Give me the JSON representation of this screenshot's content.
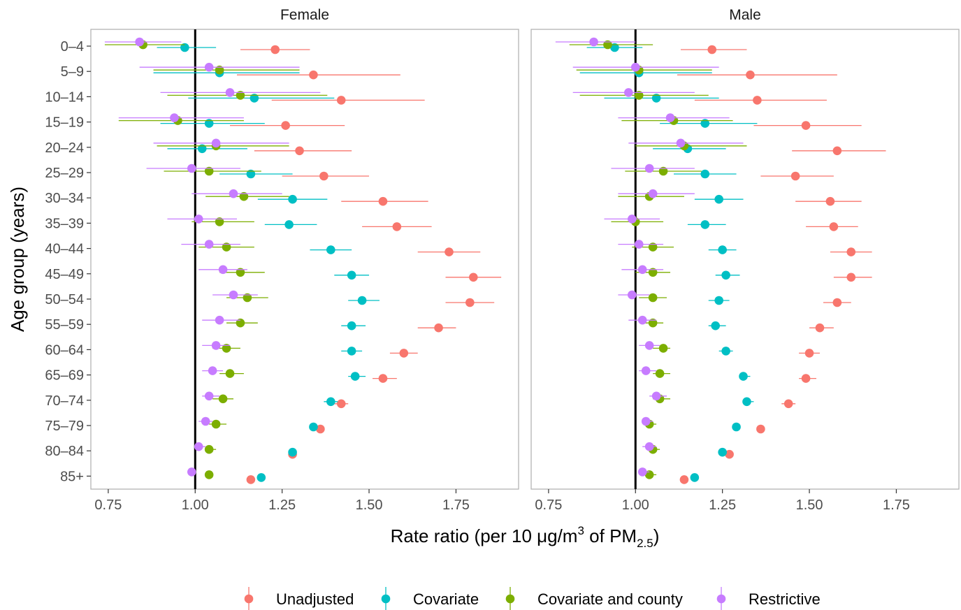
{
  "chart_data": {
    "type": "scatter",
    "subtype": "forest-plot",
    "xlabel": "Rate ratio (per 10 μg/m",
    "xlabel_sup": "3",
    "xlabel_mid": " of PM",
    "xlabel_sub": "2.5",
    "xlabel_end": ")",
    "ylabel": "Age group (years)",
    "xlim": [
      0.7,
      1.93
    ],
    "x_ticks": [
      "0.75",
      "1.00",
      "1.25",
      "1.50",
      "1.75"
    ],
    "x_tick_values": [
      0.75,
      1.0,
      1.25,
      1.5,
      1.75
    ],
    "reference_line": 1.0,
    "grid": false,
    "legend_position": "bottom",
    "categories": [
      "0–4",
      "5–9",
      "10–14",
      "15–19",
      "20–24",
      "25–29",
      "30–34",
      "35–39",
      "40–44",
      "45–49",
      "50–54",
      "55–59",
      "60–64",
      "65–69",
      "70–74",
      "75–79",
      "80–84",
      "85+"
    ],
    "series_meta": [
      {
        "key": "unadjusted",
        "name": "Unadjusted",
        "color": "#F8766D"
      },
      {
        "key": "covariate",
        "name": "Covariate",
        "color": "#00BFC4"
      },
      {
        "key": "county",
        "name": "Covariate and county",
        "color": "#7CAE00"
      },
      {
        "key": "restrictive",
        "name": "Restrictive",
        "color": "#C77CFF"
      }
    ],
    "panels": [
      {
        "title": "Female",
        "series": {
          "unadjusted": [
            [
              1.23,
              1.13,
              1.33
            ],
            [
              1.34,
              1.12,
              1.59
            ],
            [
              1.42,
              1.22,
              1.66
            ],
            [
              1.26,
              1.1,
              1.43
            ],
            [
              1.3,
              1.17,
              1.45
            ],
            [
              1.37,
              1.25,
              1.5
            ],
            [
              1.54,
              1.42,
              1.67
            ],
            [
              1.58,
              1.48,
              1.68
            ],
            [
              1.73,
              1.64,
              1.82
            ],
            [
              1.8,
              1.72,
              1.88
            ],
            [
              1.79,
              1.72,
              1.86
            ],
            [
              1.7,
              1.64,
              1.75
            ],
            [
              1.6,
              1.56,
              1.64
            ],
            [
              1.54,
              1.51,
              1.58
            ],
            [
              1.42,
              1.4,
              1.44
            ],
            [
              1.36,
              1.35,
              1.37
            ],
            [
              1.28,
              1.27,
              1.29
            ],
            [
              1.16,
              1.15,
              1.17
            ]
          ],
          "covariate": [
            [
              0.97,
              0.89,
              1.06
            ],
            [
              1.07,
              0.88,
              1.3
            ],
            [
              1.17,
              0.98,
              1.4
            ],
            [
              1.04,
              0.9,
              1.2
            ],
            [
              1.02,
              0.92,
              1.15
            ],
            [
              1.16,
              1.07,
              1.28
            ],
            [
              1.28,
              1.18,
              1.38
            ],
            [
              1.27,
              1.2,
              1.35
            ],
            [
              1.39,
              1.33,
              1.45
            ],
            [
              1.45,
              1.4,
              1.5
            ],
            [
              1.48,
              1.44,
              1.53
            ],
            [
              1.45,
              1.42,
              1.49
            ],
            [
              1.45,
              1.42,
              1.48
            ],
            [
              1.46,
              1.44,
              1.49
            ],
            [
              1.39,
              1.37,
              1.41
            ],
            [
              1.34,
              1.33,
              1.35
            ],
            [
              1.28,
              1.27,
              1.29
            ],
            [
              1.19,
              1.18,
              1.2
            ]
          ],
          "county": [
            [
              0.85,
              0.74,
              0.97
            ],
            [
              1.07,
              0.88,
              1.3
            ],
            [
              1.13,
              0.92,
              1.38
            ],
            [
              0.95,
              0.78,
              1.14
            ],
            [
              1.06,
              0.89,
              1.27
            ],
            [
              1.04,
              0.91,
              1.19
            ],
            [
              1.14,
              1.03,
              1.27
            ],
            [
              1.07,
              0.99,
              1.17
            ],
            [
              1.09,
              1.01,
              1.17
            ],
            [
              1.13,
              1.07,
              1.2
            ],
            [
              1.15,
              1.09,
              1.21
            ],
            [
              1.13,
              1.09,
              1.18
            ],
            [
              1.09,
              1.05,
              1.13
            ],
            [
              1.1,
              1.07,
              1.14
            ],
            [
              1.08,
              1.05,
              1.11
            ],
            [
              1.06,
              1.04,
              1.09
            ],
            [
              1.04,
              1.03,
              1.06
            ],
            [
              1.04,
              1.03,
              1.05
            ]
          ],
          "restrictive": [
            [
              0.84,
              0.74,
              0.96
            ],
            [
              1.04,
              0.84,
              1.3
            ],
            [
              1.1,
              0.9,
              1.36
            ],
            [
              0.94,
              0.78,
              1.14
            ],
            [
              1.06,
              0.88,
              1.27
            ],
            [
              0.99,
              0.86,
              1.13
            ],
            [
              1.11,
              0.99,
              1.25
            ],
            [
              1.01,
              0.92,
              1.12
            ],
            [
              1.04,
              0.96,
              1.13
            ],
            [
              1.08,
              1.01,
              1.15
            ],
            [
              1.11,
              1.05,
              1.18
            ],
            [
              1.07,
              1.02,
              1.13
            ],
            [
              1.06,
              1.02,
              1.1
            ],
            [
              1.05,
              1.02,
              1.08
            ],
            [
              1.04,
              1.02,
              1.07
            ],
            [
              1.03,
              1.01,
              1.05
            ],
            [
              1.01,
              1.0,
              1.03
            ],
            [
              0.99,
              0.98,
              1.0
            ]
          ]
        }
      },
      {
        "title": "Male",
        "series": {
          "unadjusted": [
            [
              1.22,
              1.13,
              1.32
            ],
            [
              1.33,
              1.12,
              1.58
            ],
            [
              1.35,
              1.17,
              1.55
            ],
            [
              1.49,
              1.34,
              1.65
            ],
            [
              1.58,
              1.45,
              1.72
            ],
            [
              1.46,
              1.36,
              1.57
            ],
            [
              1.56,
              1.46,
              1.65
            ],
            [
              1.57,
              1.49,
              1.64
            ],
            [
              1.62,
              1.56,
              1.68
            ],
            [
              1.62,
              1.57,
              1.68
            ],
            [
              1.58,
              1.54,
              1.62
            ],
            [
              1.53,
              1.5,
              1.57
            ],
            [
              1.5,
              1.47,
              1.53
            ],
            [
              1.49,
              1.47,
              1.52
            ],
            [
              1.44,
              1.42,
              1.46
            ],
            [
              1.36,
              1.35,
              1.37
            ],
            [
              1.27,
              1.26,
              1.28
            ],
            [
              1.14,
              1.13,
              1.15
            ]
          ],
          "covariate": [
            [
              0.94,
              0.86,
              1.02
            ],
            [
              1.01,
              0.84,
              1.22
            ],
            [
              1.06,
              0.91,
              1.24
            ],
            [
              1.2,
              1.07,
              1.35
            ],
            [
              1.15,
              1.05,
              1.26
            ],
            [
              1.2,
              1.11,
              1.29
            ],
            [
              1.24,
              1.17,
              1.31
            ],
            [
              1.2,
              1.15,
              1.26
            ],
            [
              1.25,
              1.21,
              1.29
            ],
            [
              1.26,
              1.23,
              1.3
            ],
            [
              1.24,
              1.21,
              1.27
            ],
            [
              1.23,
              1.21,
              1.26
            ],
            [
              1.26,
              1.24,
              1.28
            ],
            [
              1.31,
              1.3,
              1.33
            ],
            [
              1.32,
              1.31,
              1.34
            ],
            [
              1.29,
              1.28,
              1.3
            ],
            [
              1.25,
              1.24,
              1.26
            ],
            [
              1.17,
              1.16,
              1.18
            ]
          ],
          "county": [
            [
              0.92,
              0.81,
              1.05
            ],
            [
              1.01,
              0.83,
              1.22
            ],
            [
              1.01,
              0.84,
              1.21
            ],
            [
              1.11,
              0.96,
              1.28
            ],
            [
              1.14,
              1.0,
              1.32
            ],
            [
              1.08,
              0.97,
              1.19
            ],
            [
              1.04,
              0.95,
              1.14
            ],
            [
              1.0,
              0.93,
              1.08
            ],
            [
              1.05,
              0.99,
              1.11
            ],
            [
              1.05,
              1.0,
              1.1
            ],
            [
              1.05,
              1.01,
              1.09
            ],
            [
              1.05,
              1.02,
              1.08
            ],
            [
              1.08,
              1.05,
              1.1
            ],
            [
              1.07,
              1.05,
              1.1
            ],
            [
              1.07,
              1.05,
              1.1
            ],
            [
              1.04,
              1.03,
              1.06
            ],
            [
              1.05,
              1.04,
              1.07
            ],
            [
              1.04,
              1.03,
              1.06
            ]
          ],
          "restrictive": [
            [
              0.88,
              0.77,
              1.0
            ],
            [
              1.0,
              0.82,
              1.24
            ],
            [
              0.98,
              0.82,
              1.17
            ],
            [
              1.1,
              0.95,
              1.27
            ],
            [
              1.13,
              0.98,
              1.31
            ],
            [
              1.04,
              0.93,
              1.17
            ],
            [
              1.05,
              0.95,
              1.17
            ],
            [
              0.99,
              0.91,
              1.07
            ],
            [
              1.01,
              0.95,
              1.08
            ],
            [
              1.02,
              0.96,
              1.08
            ],
            [
              0.99,
              0.95,
              1.04
            ],
            [
              1.02,
              0.98,
              1.06
            ],
            [
              1.04,
              1.01,
              1.07
            ],
            [
              1.03,
              1.01,
              1.06
            ],
            [
              1.06,
              1.04,
              1.09
            ],
            [
              1.03,
              1.02,
              1.05
            ],
            [
              1.04,
              1.02,
              1.06
            ],
            [
              1.02,
              1.01,
              1.04
            ]
          ]
        }
      }
    ]
  }
}
